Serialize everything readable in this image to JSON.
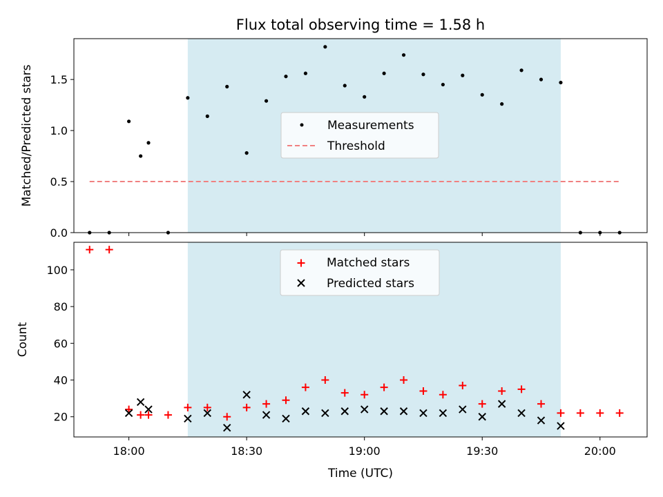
{
  "chart_data": [
    {
      "type": "scatter",
      "title": "Flux total observing time = 1.58 h",
      "xlabel": "",
      "ylabel": "Matched/Predicted stars",
      "xlim": [
        "17:46",
        "20:12"
      ],
      "ylim": [
        0,
        1.9
      ],
      "yticks": [
        0.0,
        0.5,
        1.0,
        1.5
      ],
      "ytick_labels": [
        "0.0",
        "0.5",
        "1.0",
        "1.5"
      ],
      "shaded_span": [
        "18:15",
        "19:50"
      ],
      "legend": {
        "position": "center",
        "entries": [
          "Measurements",
          "Threshold"
        ]
      },
      "colors": {
        "measurements": "#000000",
        "threshold": "#f08080",
        "span": "#add8e6"
      },
      "series": [
        {
          "name": "Measurements",
          "marker": "dot",
          "x": [
            "17:50",
            "17:55",
            "18:00",
            "18:03",
            "18:05",
            "18:10",
            "18:15",
            "18:20",
            "18:25",
            "18:30",
            "18:35",
            "18:40",
            "18:45",
            "18:50",
            "18:55",
            "19:00",
            "19:05",
            "19:10",
            "19:15",
            "19:20",
            "19:25",
            "19:30",
            "19:35",
            "19:40",
            "19:45",
            "19:50",
            "19:55",
            "20:00",
            "20:05"
          ],
          "y": [
            0.0,
            0.0,
            1.09,
            0.75,
            0.88,
            0.0,
            1.32,
            1.14,
            1.43,
            0.78,
            1.29,
            1.53,
            1.56,
            1.82,
            1.44,
            1.33,
            1.56,
            1.74,
            1.55,
            1.45,
            1.54,
            1.35,
            1.26,
            1.59,
            1.5,
            1.47,
            0.0,
            0.0,
            0.0
          ]
        },
        {
          "name": "Threshold",
          "style": "dashed",
          "x": [
            "17:50",
            "20:05"
          ],
          "y": [
            0.5,
            0.5
          ]
        }
      ]
    },
    {
      "type": "scatter",
      "title": "",
      "xlabel": "Time (UTC)",
      "ylabel": "Count",
      "xlim": [
        "17:46",
        "20:12"
      ],
      "ylim": [
        9,
        115
      ],
      "xticks": [
        "18:00",
        "18:30",
        "19:00",
        "19:30",
        "20:00"
      ],
      "xtick_labels": [
        "18:00",
        "18:30",
        "19:00",
        "19:30",
        "20:00"
      ],
      "yticks": [
        20,
        40,
        60,
        80,
        100
      ],
      "ytick_labels": [
        "20",
        "40",
        "60",
        "80",
        "100"
      ],
      "shaded_span": [
        "18:15",
        "19:50"
      ],
      "legend": {
        "position": "upper center",
        "entries": [
          "Matched stars",
          "Predicted stars"
        ]
      },
      "colors": {
        "matched": "#ff0000",
        "predicted": "#000000",
        "span": "#add8e6"
      },
      "series": [
        {
          "name": "Matched stars",
          "marker": "plus",
          "x": [
            "17:50",
            "17:55",
            "18:00",
            "18:03",
            "18:05",
            "18:10",
            "18:15",
            "18:20",
            "18:25",
            "18:30",
            "18:35",
            "18:40",
            "18:45",
            "18:50",
            "18:55",
            "19:00",
            "19:05",
            "19:10",
            "19:15",
            "19:20",
            "19:25",
            "19:30",
            "19:35",
            "19:40",
            "19:45",
            "19:50",
            "19:55",
            "20:00",
            "20:05"
          ],
          "y": [
            111,
            111,
            24,
            21,
            21,
            21,
            25,
            25,
            20,
            25,
            27,
            29,
            36,
            40,
            33,
            32,
            36,
            40,
            34,
            32,
            37,
            27,
            34,
            35,
            27,
            22,
            22,
            22,
            22
          ]
        },
        {
          "name": "Predicted stars",
          "marker": "x",
          "x": [
            "18:00",
            "18:03",
            "18:05",
            "18:15",
            "18:20",
            "18:25",
            "18:30",
            "18:35",
            "18:40",
            "18:45",
            "18:50",
            "18:55",
            "19:00",
            "19:05",
            "19:10",
            "19:15",
            "19:20",
            "19:25",
            "19:30",
            "19:35",
            "19:40",
            "19:45",
            "19:50"
          ],
          "y": [
            22,
            28,
            24,
            19,
            22,
            14,
            32,
            21,
            19,
            23,
            22,
            23,
            24,
            23,
            23,
            22,
            22,
            24,
            20,
            27,
            22,
            18,
            15
          ]
        }
      ]
    }
  ]
}
